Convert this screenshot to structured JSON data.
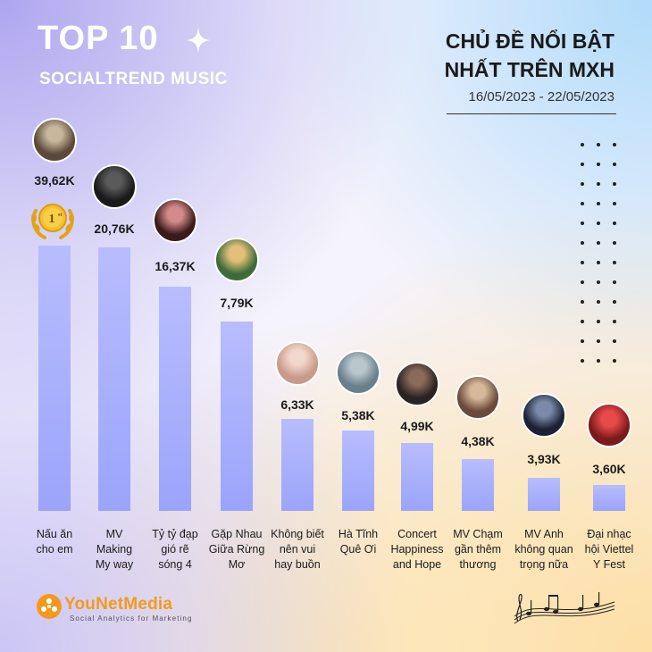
{
  "header": {
    "top_title": "TOP 10",
    "subtitle": "SOCIALTREND MUSIC",
    "right_title_line1": "CHỦ ĐỀ NỔI BẬT",
    "right_title_line2": "NHẤT TRÊN MXH",
    "date_range": "16/05/2023 - 22/05/2023"
  },
  "badge": {
    "rank_text": "1",
    "rank_suffix": "st"
  },
  "footer": {
    "brand": "YouNetMedia",
    "tagline": "Social Analytics for Marketing"
  },
  "colors": {
    "bar_top": "#b8bdfd",
    "bar_bottom": "#9ba4fb",
    "brand_orange": "#f39a1e",
    "medal_gold": "#f2b520"
  },
  "chart_data": {
    "type": "bar",
    "title": "CHỦ ĐỀ NỔI BẬT NHẤT TRÊN MXH",
    "xlabel": "",
    "ylabel": "",
    "unit": "K",
    "categories": [
      [
        "Nấu ăn",
        "cho em"
      ],
      [
        "MV",
        "Making",
        "My way"
      ],
      [
        "Tỷ tỷ đạp",
        "gió rẽ",
        "sóng 4"
      ],
      [
        "Gặp Nhau",
        "Giữa Rừng",
        "Mơ"
      ],
      [
        "Không biết",
        "nên vui",
        "hay buồn"
      ],
      [
        "Hà Tĩnh",
        "Quê Ơi"
      ],
      [
        "Concert",
        "Happiness",
        "and Hope"
      ],
      [
        "MV Chạm",
        "gần thêm",
        "thương"
      ],
      [
        "MV Anh",
        "không quan",
        "trọng nữa"
      ],
      [
        "Đại nhạc",
        "hội Viettel",
        "Y Fest"
      ]
    ],
    "values": [
      39.62,
      20.76,
      16.37,
      7.79,
      6.33,
      5.38,
      4.99,
      4.38,
      3.93,
      3.6
    ],
    "value_labels": [
      "39,62K",
      "20,76K",
      "16,37K",
      "7,79K",
      "6,33K",
      "5,38K",
      "4,99K",
      "4,38K",
      "3,93K",
      "3,60K"
    ],
    "grid": false,
    "legend": "none"
  }
}
